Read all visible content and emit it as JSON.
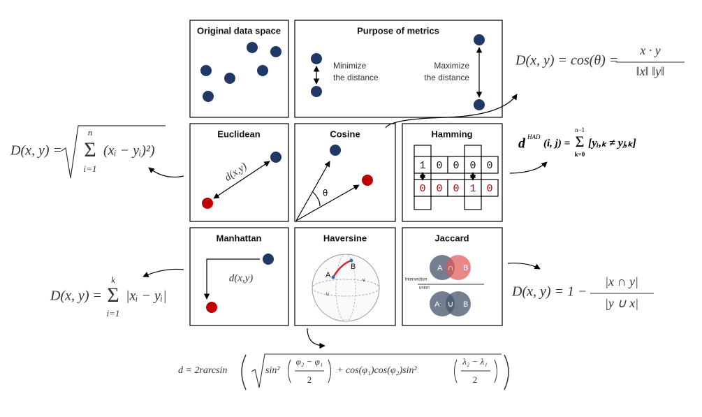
{
  "panels": {
    "original": {
      "title": "Original data space"
    },
    "purpose": {
      "title": "Purpose of metrics",
      "minimize": [
        "Minimize",
        "the distance"
      ],
      "maximize": [
        "Maximize",
        "the distance"
      ]
    },
    "euclidean": {
      "title": "Euclidean",
      "label": "d(x,y)"
    },
    "cosine": {
      "title": "Cosine",
      "angle": "θ"
    },
    "hamming": {
      "title": "Hamming",
      "row1": [
        "1",
        "0",
        "0",
        "0",
        "0"
      ],
      "row2": [
        "0",
        "0",
        "0",
        "1",
        "0"
      ]
    },
    "manhattan": {
      "title": "Manhattan",
      "label": "d(x,y)"
    },
    "haversine": {
      "title": "Haversine",
      "points": [
        "A",
        "B",
        "u",
        "v"
      ]
    },
    "jaccard": {
      "title": "Jaccard",
      "top": [
        "A",
        "∩",
        "B"
      ],
      "intersection": "Intersection",
      "union": "union",
      "bottom": [
        "A",
        "∪",
        "B"
      ]
    }
  },
  "formulas": {
    "cosine": {
      "lhs": "D(x, y) = cos(θ) =",
      "numerator": "x · y",
      "denominator": "‖x‖ ‖y‖"
    },
    "euclidean": {
      "lhs": "D(x, y) =",
      "upper": "n",
      "sigma": "Σ",
      "lower": "i=1",
      "body": "(xᵢ − yᵢ)²)"
    },
    "hamming": {
      "d": "d",
      "sup": "HAD",
      "args": "(i, j) =",
      "upper": "n−1",
      "sigma": "Σ",
      "lower": "k=0",
      "body": "[yᵢ,ₖ ≠ yⱼ,ₖ]"
    },
    "manhattan": {
      "lhs": "D(x, y) =",
      "upper": "k",
      "sigma": "Σ",
      "lower": "i=1",
      "body": "|xᵢ − yᵢ|"
    },
    "jaccard": {
      "lhs": "D(x, y) = 1 −",
      "numerator": "|x ∩ y|",
      "denominator": "|y ∪ x|"
    },
    "haversine": {
      "lhs": "d = 2rarcsin",
      "sin1": "sin²",
      "num1": "φ₂ − φ₁",
      "den1": "2",
      "middle": "+ cos(φ₁)cos(φ₂)sin²",
      "num2": "λ₂ − λ₁",
      "den2": "2"
    }
  }
}
